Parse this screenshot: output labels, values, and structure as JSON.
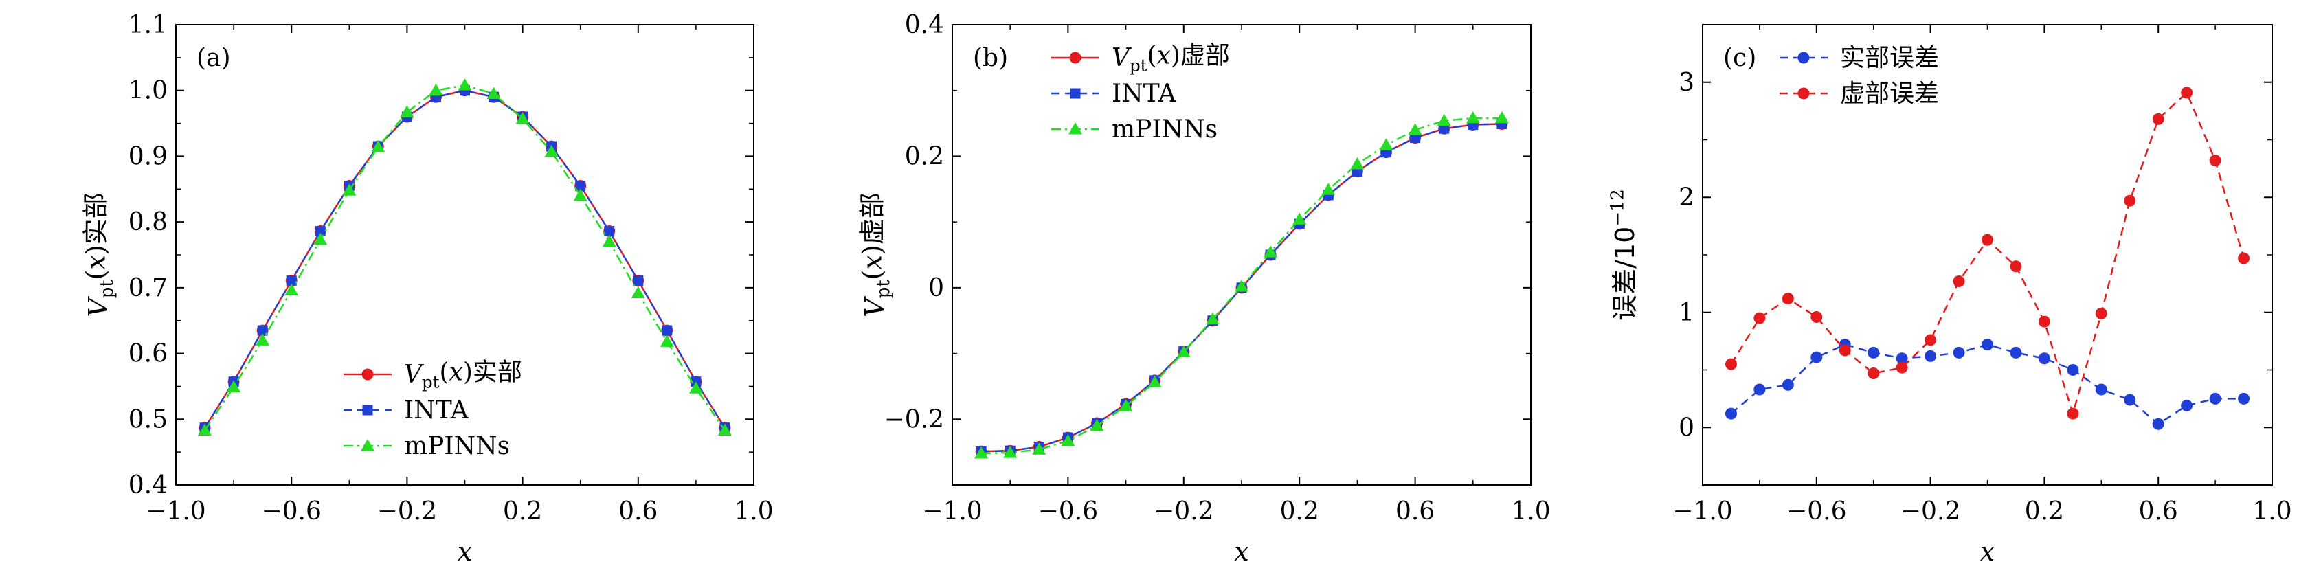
{
  "chart_data": [
    {
      "type": "line",
      "panel_label": "(a)",
      "xlabel": "x",
      "ylabel": {
        "prefix": "V",
        "subscript": "pt",
        "arg": "(x)",
        "suffix": "实部"
      },
      "xlim": [
        -1.0,
        1.0
      ],
      "ylim": [
        0.4,
        1.1
      ],
      "xticks": [
        -1.0,
        -0.6,
        -0.2,
        0.2,
        0.6,
        1.0
      ],
      "xtick_labels": [
        "−1.0",
        "−0.6",
        "−0.2",
        "0.2",
        "0.6",
        "1.0"
      ],
      "yticks": [
        0.4,
        0.5,
        0.6,
        0.7,
        0.8,
        0.9,
        1.0,
        1.1
      ],
      "ytick_labels": [
        "0.4",
        "0.5",
        "0.6",
        "0.7",
        "0.8",
        "0.9",
        "1.0",
        "1.1"
      ],
      "legend_position": "bottom-right",
      "series": [
        {
          "name": "实部",
          "legend": {
            "prefix": "V",
            "subscript": "pt",
            "arg": "(x)",
            "suffix": "实部"
          },
          "color": "#e41a1c",
          "marker": "circle",
          "dash": "solid",
          "x": [
            -0.9,
            -0.8,
            -0.7,
            -0.6,
            -0.5,
            -0.4,
            -0.3,
            -0.2,
            -0.1,
            0.0,
            0.1,
            0.2,
            0.3,
            0.4,
            0.5,
            0.6,
            0.7,
            0.8,
            0.9
          ],
          "y": [
            0.487,
            0.557,
            0.635,
            0.711,
            0.786,
            0.855,
            0.915,
            0.96,
            0.99,
            1.0,
            0.99,
            0.96,
            0.915,
            0.855,
            0.786,
            0.711,
            0.635,
            0.557,
            0.487
          ]
        },
        {
          "name": "INTA",
          "legend": {
            "text": "INTA"
          },
          "color": "#1f3fd6",
          "marker": "square",
          "dash": "dashed",
          "x": [
            -0.9,
            -0.8,
            -0.7,
            -0.6,
            -0.5,
            -0.4,
            -0.3,
            -0.2,
            -0.1,
            0.0,
            0.1,
            0.2,
            0.3,
            0.4,
            0.5,
            0.6,
            0.7,
            0.8,
            0.9
          ],
          "y": [
            0.487,
            0.557,
            0.635,
            0.711,
            0.786,
            0.855,
            0.915,
            0.96,
            0.99,
            1.0,
            0.99,
            0.96,
            0.915,
            0.855,
            0.786,
            0.711,
            0.635,
            0.557,
            0.487
          ]
        },
        {
          "name": "mPINNs",
          "legend": {
            "text": "mPINNs"
          },
          "color": "#22dd22",
          "marker": "triangle",
          "dash": "dashdot",
          "x": [
            -0.9,
            -0.8,
            -0.7,
            -0.6,
            -0.5,
            -0.4,
            -0.3,
            -0.2,
            -0.1,
            0.0,
            0.1,
            0.2,
            0.3,
            0.4,
            0.5,
            0.6,
            0.7,
            0.8,
            0.9
          ],
          "y": [
            0.483,
            0.549,
            0.62,
            0.696,
            0.773,
            0.848,
            0.914,
            0.967,
            1.0,
            1.008,
            0.995,
            0.957,
            0.907,
            0.84,
            0.77,
            0.692,
            0.618,
            0.547,
            0.483
          ]
        }
      ]
    },
    {
      "type": "line",
      "panel_label": "(b)",
      "xlabel": "x",
      "ylabel": {
        "prefix": "V",
        "subscript": "pt",
        "arg": "(x)",
        "suffix": "虚部"
      },
      "xlim": [
        -1.0,
        1.0
      ],
      "ylim": [
        -0.3,
        0.4
      ],
      "xticks": [
        -1.0,
        -0.6,
        -0.2,
        0.2,
        0.6,
        1.0
      ],
      "xtick_labels": [
        "−1.0",
        "−0.6",
        "−0.2",
        "0.2",
        "0.6",
        "1.0"
      ],
      "yticks": [
        -0.2,
        0.0,
        0.2,
        0.4
      ],
      "ytick_labels": [
        "−0.2",
        "0",
        "0.2",
        "0.4"
      ],
      "legend_position": "top-left",
      "series": [
        {
          "name": "虚部",
          "legend": {
            "prefix": "V",
            "subscript": "pt",
            "arg": "(x)",
            "suffix": "虚部"
          },
          "color": "#e41a1c",
          "marker": "circle",
          "dash": "solid",
          "x": [
            -0.9,
            -0.8,
            -0.7,
            -0.6,
            -0.5,
            -0.4,
            -0.3,
            -0.2,
            -0.1,
            0.0,
            0.1,
            0.2,
            0.3,
            0.4,
            0.5,
            0.6,
            0.7,
            0.8,
            0.9
          ],
          "y": [
            -0.249,
            -0.248,
            -0.242,
            -0.228,
            -0.206,
            -0.177,
            -0.141,
            -0.097,
            -0.05,
            0.0,
            0.05,
            0.097,
            0.141,
            0.177,
            0.206,
            0.228,
            0.242,
            0.248,
            0.249
          ]
        },
        {
          "name": "INTA",
          "legend": {
            "text": "INTA"
          },
          "color": "#1f3fd6",
          "marker": "square",
          "dash": "dashed",
          "x": [
            -0.9,
            -0.8,
            -0.7,
            -0.6,
            -0.5,
            -0.4,
            -0.3,
            -0.2,
            -0.1,
            0.0,
            0.1,
            0.2,
            0.3,
            0.4,
            0.5,
            0.6,
            0.7,
            0.8,
            0.9
          ],
          "y": [
            -0.249,
            -0.248,
            -0.242,
            -0.228,
            -0.206,
            -0.177,
            -0.141,
            -0.097,
            -0.05,
            0.0,
            0.05,
            0.097,
            0.141,
            0.177,
            0.206,
            0.228,
            0.242,
            0.248,
            0.249
          ]
        },
        {
          "name": "mPINNs",
          "legend": {
            "text": "mPINNs"
          },
          "color": "#22dd22",
          "marker": "triangle",
          "dash": "dashdot",
          "x": [
            -0.9,
            -0.8,
            -0.7,
            -0.6,
            -0.5,
            -0.4,
            -0.3,
            -0.2,
            -0.1,
            0.0,
            0.1,
            0.2,
            0.3,
            0.4,
            0.5,
            0.6,
            0.7,
            0.8,
            0.9
          ],
          "y": [
            -0.252,
            -0.251,
            -0.246,
            -0.233,
            -0.21,
            -0.18,
            -0.144,
            -0.098,
            -0.048,
            0.002,
            0.054,
            0.104,
            0.149,
            0.188,
            0.217,
            0.24,
            0.254,
            0.258,
            0.258
          ]
        }
      ]
    },
    {
      "type": "line",
      "panel_label": "(c)",
      "xlabel": "x",
      "ylabel": {
        "suffix": "误差/10",
        "sup": "−12"
      },
      "xlim": [
        -1.0,
        1.0
      ],
      "ylim": [
        -0.5,
        3.5
      ],
      "xticks": [
        -1.0,
        -0.6,
        -0.2,
        0.2,
        0.6,
        1.0
      ],
      "xtick_labels": [
        "−1.0",
        "−0.6",
        "−0.2",
        "0.2",
        "0.6",
        "1.0"
      ],
      "yticks": [
        0,
        1,
        2,
        3
      ],
      "ytick_labels": [
        "0",
        "1",
        "2",
        "3"
      ],
      "legend_position": "top-left",
      "series": [
        {
          "name": "实部误差",
          "legend": {
            "text": "实部误差"
          },
          "color": "#1f3fd6",
          "marker": "circle",
          "dash": "dashed",
          "x": [
            -0.9,
            -0.8,
            -0.7,
            -0.6,
            -0.5,
            -0.4,
            -0.3,
            -0.2,
            -0.1,
            0.0,
            0.1,
            0.2,
            0.3,
            0.4,
            0.5,
            0.6,
            0.7,
            0.8,
            0.9
          ],
          "y": [
            0.12,
            0.33,
            0.37,
            0.61,
            0.72,
            0.65,
            0.6,
            0.62,
            0.65,
            0.72,
            0.65,
            0.6,
            0.5,
            0.33,
            0.24,
            0.03,
            0.19,
            0.25,
            0.25
          ]
        },
        {
          "name": "虚部误差",
          "legend": {
            "text": "虚部误差"
          },
          "color": "#e41a1c",
          "marker": "circle",
          "dash": "dashed",
          "x": [
            -0.9,
            -0.8,
            -0.7,
            -0.6,
            -0.5,
            -0.4,
            -0.3,
            -0.2,
            -0.1,
            0.0,
            0.1,
            0.2,
            0.3,
            0.4,
            0.5,
            0.6,
            0.7,
            0.8,
            0.9
          ],
          "y": [
            0.55,
            0.95,
            1.12,
            0.96,
            0.67,
            0.47,
            0.52,
            0.76,
            1.27,
            1.63,
            1.4,
            0.92,
            0.12,
            0.99,
            1.97,
            2.68,
            2.91,
            2.32,
            1.47
          ]
        }
      ]
    }
  ]
}
